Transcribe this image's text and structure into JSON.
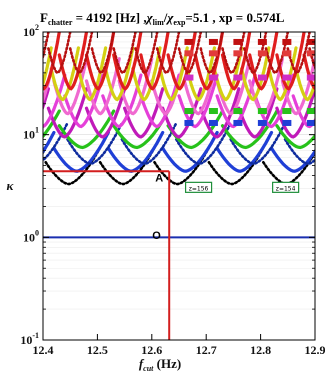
{
  "chart_data": {
    "type": "line",
    "title": {
      "prefix": "F",
      "prefix_sub": "chatter",
      "text_1": " = 4192 [Hz] ,",
      "chi": "χ",
      "chi_sub_1": "lim",
      "slash": "/",
      "chi_sub_2": "exp",
      "text_2": "=5.1   , xp = 0.574L"
    },
    "xlabel": {
      "main": "f",
      "sub": "cut",
      "unit": " (Hz)"
    },
    "ylabel": "κ",
    "xlim": [
      12.4,
      12.9
    ],
    "ylim": [
      0.1,
      100
    ],
    "yscale": "log",
    "x_ticks": [
      "12.4",
      "12.5",
      "12.6",
      "12.7",
      "12.8",
      "12.9"
    ],
    "y_ticks": [
      {
        "base": "10",
        "exp": "-1",
        "value": 0.1
      },
      {
        "base": "10",
        "exp": "0",
        "value": 1
      },
      {
        "base": "10",
        "exp": "1",
        "value": 10
      },
      {
        "base": "10",
        "exp": "2",
        "value": 100
      }
    ],
    "reference_lines": {
      "horizontal_kappa": 1.0,
      "horizontal_color": "#1a2fb0",
      "vertical_fcut": 12.632,
      "vertical_color": "#d31e1e"
    },
    "lobe_families": [
      {
        "color": "#000000",
        "min": 3.3,
        "max": 7.5,
        "period": 0.1,
        "offset": 12.405,
        "dotted": true
      },
      {
        "color": "#1f3fd6",
        "min": 4.4,
        "max": 10.5,
        "period": 0.1,
        "offset": 12.42,
        "dotted": false
      },
      {
        "color": "#0f2c9e",
        "min": 5.2,
        "max": 13.0,
        "period": 0.1,
        "offset": 12.445,
        "dotted": true
      },
      {
        "color": "#27c21a",
        "min": 7.5,
        "max": 17.0,
        "period": 0.1,
        "offset": 12.43,
        "dotted": false
      },
      {
        "color": "#c01ab9",
        "min": 9.5,
        "max": 28.0,
        "period": 0.07,
        "offset": 12.41,
        "dotted": false
      },
      {
        "color": "#e53fd9",
        "min": 12.0,
        "max": 38.0,
        "period": 0.07,
        "offset": 12.44,
        "dotted": false
      },
      {
        "color": "#f06ad0",
        "min": 16.0,
        "max": 55.0,
        "period": 0.06,
        "offset": 12.42,
        "dotted": false
      },
      {
        "color": "#d4d012",
        "min": 22.0,
        "max": 70.0,
        "period": 0.05,
        "offset": 12.415,
        "dotted": false
      },
      {
        "color": "#e01e1e",
        "min": 28.0,
        "max": 100.0,
        "period": 0.05,
        "offset": 12.43,
        "dotted": false
      },
      {
        "color": "#b51010",
        "min": 40.0,
        "max": 100.0,
        "period": 0.04,
        "offset": 12.41,
        "dotted": true
      }
    ],
    "markers": [
      {
        "label": "A",
        "x": 12.632,
        "y": 4.4
      },
      {
        "label": "O",
        "x": 12.627,
        "y": 1.08
      }
    ],
    "band_labels": [
      {
        "text": "z=156",
        "x": 12.686,
        "y": 3.0
      },
      {
        "text": "z=154",
        "x": 12.846,
        "y": 3.0
      }
    ],
    "colors": {
      "axis": "#000000",
      "grid": "#d9d9d9",
      "background": "#ffffff",
      "label_box": "#1f8f3a"
    }
  }
}
